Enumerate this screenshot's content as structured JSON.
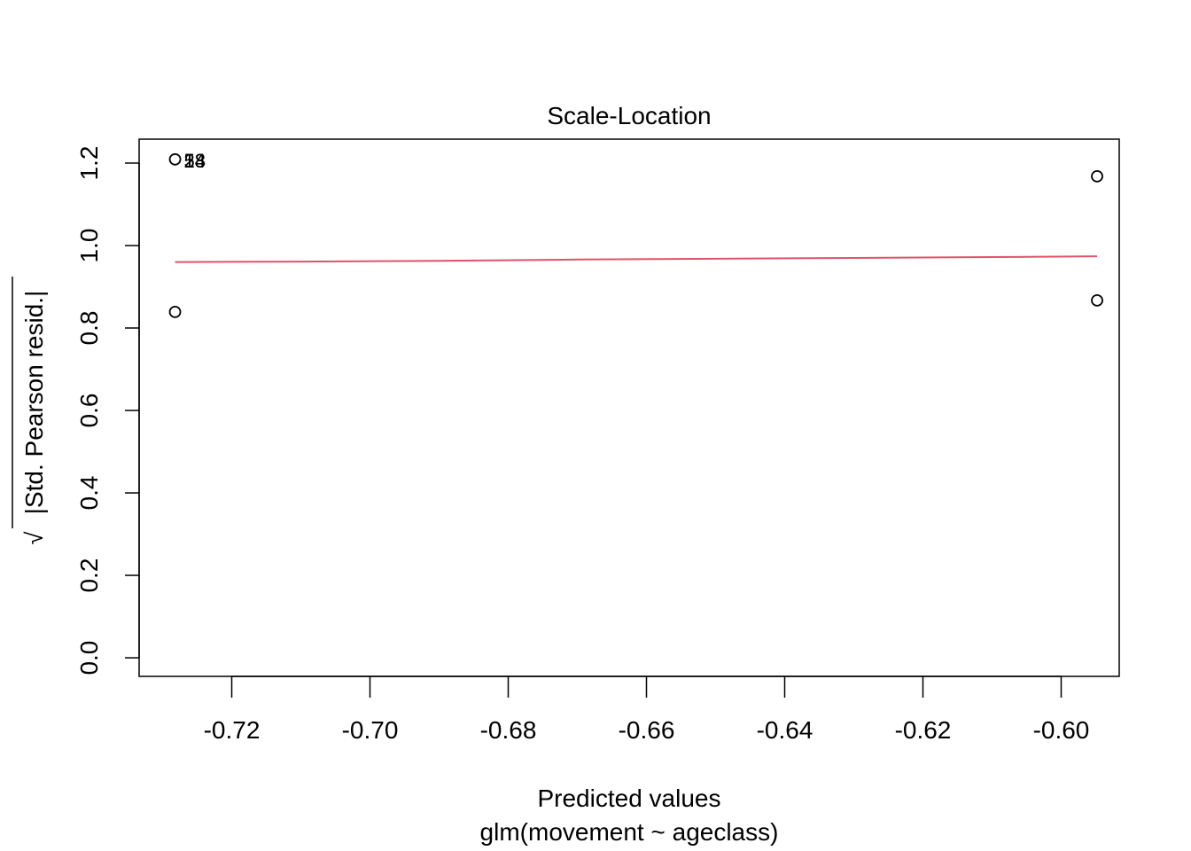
{
  "chart_data": {
    "type": "scatter",
    "title": "Scale-Location",
    "xlabel": "Predicted values",
    "sub_xlabel": "glm(movement ~ ageclass)",
    "ylabel_radical": "√",
    "ylabel": "|Std. Pearson resid.|",
    "xlim": [
      -0.7334,
      -0.5916
    ],
    "ylim": [
      -0.045,
      1.258
    ],
    "x_ticks": [
      -0.72,
      -0.7,
      -0.68,
      -0.66,
      -0.64,
      -0.62,
      -0.6
    ],
    "x_tick_labels": [
      "-0.72",
      "-0.70",
      "-0.68",
      "-0.66",
      "-0.64",
      "-0.62",
      "-0.60"
    ],
    "y_ticks": [
      0.0,
      0.2,
      0.4,
      0.6,
      0.8,
      1.0,
      1.2
    ],
    "y_tick_labels": [
      "0.0",
      "0.2",
      "0.4",
      "0.6",
      "0.8",
      "1.0",
      "1.2"
    ],
    "points": [
      {
        "x": -0.7282,
        "y": 1.209
      },
      {
        "x": -0.7282,
        "y": 0.839
      },
      {
        "x": -0.5948,
        "y": 1.168
      },
      {
        "x": -0.5948,
        "y": 0.867
      }
    ],
    "point_labels": [
      {
        "x": -0.7282,
        "y": 1.209,
        "text": "53"
      },
      {
        "x": -0.7282,
        "y": 1.209,
        "text": "14"
      },
      {
        "x": -0.7282,
        "y": 1.209,
        "text": "28"
      }
    ],
    "smooth_line": {
      "color": "#DF536B",
      "x": [
        -0.7282,
        -0.71,
        -0.69,
        -0.67,
        -0.65,
        -0.63,
        -0.61,
        -0.5948
      ],
      "y": [
        0.96,
        0.961,
        0.963,
        0.966,
        0.968,
        0.97,
        0.972,
        0.974
      ]
    },
    "grid": false,
    "legend": "none"
  }
}
